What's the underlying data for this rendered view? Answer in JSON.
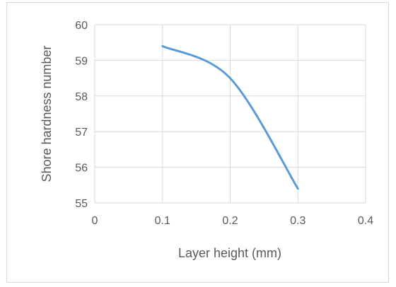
{
  "chart_data": {
    "type": "line",
    "title": "",
    "xlabel": "Layer height (mm)",
    "ylabel": "Shore hardness number",
    "xlim": [
      0,
      0.4
    ],
    "ylim": [
      55,
      60
    ],
    "x_ticks": [
      "0",
      "0.1",
      "0.2",
      "0.3",
      "0.4"
    ],
    "y_ticks": [
      "55",
      "56",
      "57",
      "58",
      "59",
      "60"
    ],
    "grid": true,
    "legend": "none",
    "series": [
      {
        "color": "#5b9bd5",
        "smooth": true,
        "points": [
          {
            "x": 0.1,
            "y": 59.4
          },
          {
            "x": 0.2,
            "y": 58.5
          },
          {
            "x": 0.3,
            "y": 55.4
          }
        ]
      }
    ]
  }
}
